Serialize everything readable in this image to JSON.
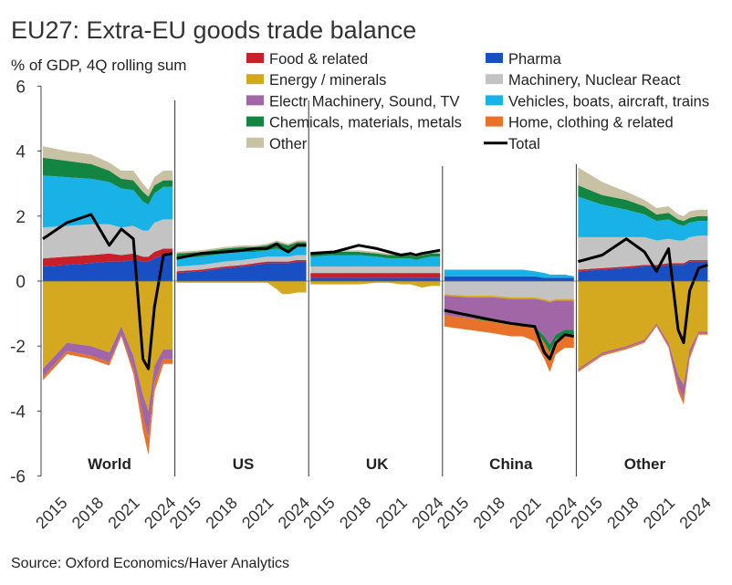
{
  "chart_data": {
    "type": "area",
    "title": "EU27: Extra-EU goods trade balance",
    "subtitle": "% of GDP, 4Q rolling sum",
    "source": "Source: Oxford Economics/Haver Analytics",
    "ylim": [
      -6,
      6
    ],
    "yticks": [
      "6",
      "4",
      "2",
      "0",
      "-2",
      "-4",
      "-6"
    ],
    "xtick_labels": [
      "2015",
      "2018",
      "2021",
      "2024"
    ],
    "panels": [
      "World",
      "US",
      "UK",
      "China",
      "Other"
    ],
    "legend": [
      {
        "name": "Food & related",
        "color": "#c8202a",
        "kind": "area"
      },
      {
        "name": "Pharma",
        "color": "#1a4fc4",
        "kind": "area"
      },
      {
        "name": "Energy / minerals",
        "color": "#d4a91f",
        "kind": "area"
      },
      {
        "name": "Machinery, Nuclear React",
        "color": "#c3c3c3",
        "kind": "area"
      },
      {
        "name": "Electr Machinery, Sound, TV",
        "color": "#a166a6",
        "kind": "area"
      },
      {
        "name": "Vehicles, boats, aircraft, trains",
        "color": "#19b2e6",
        "kind": "area"
      },
      {
        "name": "Chemicals, materials, metals",
        "color": "#138542",
        "kind": "area"
      },
      {
        "name": "Home, clothing & related",
        "color": "#e8722a",
        "kind": "area"
      },
      {
        "name": "Other",
        "color": "#c9c1a3",
        "kind": "area"
      },
      {
        "name": "Total",
        "color": "#000000",
        "kind": "line"
      }
    ],
    "x_time": [
      2014.0,
      2016.0,
      2018.0,
      2019.5,
      2020.5,
      2021.5,
      2022.3,
      2022.75,
      2023.25,
      2024.0,
      2024.75
    ],
    "series_order": [
      "Pharma",
      "Food & related",
      "Machinery, Nuclear React",
      "Vehicles, boats, aircraft, trains",
      "Chemicals, materials, metals",
      "Other",
      "Energy / minerals",
      "Electr Machinery, Sound, TV",
      "Home, clothing & related"
    ],
    "panel_data": {
      "World": {
        "Pharma": [
          0.45,
          0.5,
          0.55,
          0.6,
          0.6,
          0.65,
          0.6,
          0.6,
          0.7,
          0.8,
          0.8
        ],
        "Food & related": [
          0.25,
          0.25,
          0.25,
          0.25,
          0.2,
          0.2,
          0.15,
          0.15,
          0.2,
          0.2,
          0.2
        ],
        "Machinery, Nuclear React": [
          0.95,
          0.95,
          0.95,
          0.9,
          0.85,
          0.85,
          0.8,
          0.8,
          0.9,
          0.9,
          0.9
        ],
        "Vehicles, boats, aircraft, trains": [
          1.6,
          1.5,
          1.4,
          1.3,
          1.2,
          1.1,
          0.9,
          0.8,
          0.9,
          1.0,
          1.0
        ],
        "Chemicals, materials, metals": [
          0.55,
          0.5,
          0.45,
          0.35,
          0.3,
          0.3,
          0.3,
          0.25,
          0.25,
          0.2,
          0.2
        ],
        "Other": [
          0.35,
          0.3,
          0.3,
          0.25,
          0.25,
          0.3,
          0.25,
          0.2,
          0.25,
          0.3,
          0.3
        ],
        "Energy / minerals": [
          -2.7,
          -1.9,
          -2.0,
          -2.2,
          -1.4,
          -2.3,
          -3.5,
          -4.0,
          -2.6,
          -2.1,
          -2.1
        ],
        "Electr Machinery, Sound, TV": [
          -0.25,
          -0.25,
          -0.3,
          -0.3,
          -0.25,
          -0.4,
          -0.7,
          -0.8,
          -0.5,
          -0.3,
          -0.3
        ],
        "Home, clothing & related": [
          -0.1,
          -0.1,
          -0.1,
          -0.1,
          -0.05,
          -0.15,
          -0.4,
          -0.55,
          -0.3,
          -0.15,
          -0.15
        ],
        "Total": [
          1.3,
          1.8,
          2.05,
          1.1,
          1.6,
          1.3,
          -2.4,
          -2.7,
          -0.8,
          0.8,
          0.85
        ]
      },
      "US": {
        "Pharma": [
          0.25,
          0.3,
          0.4,
          0.45,
          0.5,
          0.55,
          0.55,
          0.55,
          0.55,
          0.6,
          0.6
        ],
        "Food & related": [
          0.05,
          0.05,
          0.05,
          0.05,
          0.05,
          0.05,
          0.05,
          0.05,
          0.05,
          0.05,
          0.05
        ],
        "Machinery, Nuclear React": [
          0.15,
          0.15,
          0.15,
          0.15,
          0.15,
          0.15,
          0.15,
          0.15,
          0.15,
          0.15,
          0.15
        ],
        "Vehicles, boats, aircraft, trains": [
          0.25,
          0.25,
          0.25,
          0.25,
          0.2,
          0.2,
          0.25,
          0.2,
          0.2,
          0.25,
          0.25
        ],
        "Chemicals, materials, metals": [
          0.15,
          0.15,
          0.15,
          0.15,
          0.15,
          0.15,
          0.2,
          0.2,
          0.15,
          0.15,
          0.15
        ],
        "Other": [
          0.05,
          0.05,
          0.05,
          0.05,
          0.05,
          0.05,
          0.05,
          0.05,
          0.05,
          0.05,
          0.05
        ],
        "Energy / minerals": [
          -0.05,
          -0.05,
          -0.05,
          -0.05,
          -0.05,
          -0.05,
          -0.25,
          -0.4,
          -0.4,
          -0.35,
          -0.35
        ],
        "Electr Machinery, Sound, TV": [
          0,
          0,
          0,
          0,
          0,
          0,
          0,
          0,
          0,
          0,
          0
        ],
        "Home, clothing & related": [
          0,
          0,
          0,
          0,
          0,
          0,
          0,
          0,
          0,
          0,
          0
        ],
        "Total": [
          0.7,
          0.85,
          0.9,
          0.95,
          1.0,
          1.0,
          1.15,
          1.0,
          0.9,
          1.1,
          1.1
        ]
      },
      "UK": {
        "Pharma": [
          0.1,
          0.1,
          0.1,
          0.1,
          0.1,
          0.1,
          0.1,
          0.1,
          0.1,
          0.1,
          0.1
        ],
        "Food & related": [
          0.15,
          0.15,
          0.15,
          0.15,
          0.15,
          0.15,
          0.15,
          0.15,
          0.15,
          0.15,
          0.15
        ],
        "Machinery, Nuclear React": [
          0.2,
          0.2,
          0.2,
          0.2,
          0.2,
          0.2,
          0.2,
          0.2,
          0.2,
          0.2,
          0.2
        ],
        "Vehicles, boats, aircraft, trains": [
          0.3,
          0.35,
          0.35,
          0.3,
          0.25,
          0.25,
          0.25,
          0.2,
          0.25,
          0.3,
          0.3
        ],
        "Chemicals, materials, metals": [
          0.1,
          0.1,
          0.1,
          0.1,
          0.1,
          0.1,
          0.1,
          0.1,
          0.1,
          0.1,
          0.1
        ],
        "Other": [
          0.05,
          0.05,
          0.05,
          0.05,
          0.05,
          0.05,
          0.05,
          0.05,
          0.05,
          0.05,
          0.05
        ],
        "Energy / minerals": [
          -0.1,
          -0.1,
          -0.1,
          -0.05,
          -0.05,
          -0.1,
          -0.1,
          -0.15,
          -0.2,
          -0.15,
          -0.15
        ],
        "Electr Machinery, Sound, TV": [
          0,
          0,
          0,
          0,
          0,
          0,
          0,
          0,
          0,
          0,
          0
        ],
        "Home, clothing & related": [
          0,
          0,
          0,
          0,
          0,
          0,
          0,
          0,
          0,
          0,
          0
        ],
        "Total": [
          0.85,
          0.9,
          1.1,
          1.0,
          0.9,
          0.8,
          0.85,
          0.8,
          0.85,
          0.9,
          0.95
        ]
      },
      "China": {
        "Pharma": [
          0.15,
          0.15,
          0.15,
          0.15,
          0.15,
          0.15,
          0.1,
          0.1,
          0.1,
          0.1,
          0.1
        ],
        "Food & related": [
          0,
          0,
          0,
          0,
          0,
          0,
          0,
          0,
          0,
          0,
          0
        ],
        "Machinery, Nuclear React": [
          0,
          0,
          0,
          0,
          0,
          0,
          0,
          0,
          0,
          0,
          0
        ],
        "Vehicles, boats, aircraft, trains": [
          0.2,
          0.2,
          0.2,
          0.2,
          0.2,
          0.15,
          0.15,
          0.1,
          0.1,
          0.1,
          0.05
        ],
        "Chemicals, materials, metals": [
          0,
          0,
          0,
          0,
          0,
          0,
          0,
          0,
          0,
          0,
          0
        ],
        "Other": [
          0,
          0,
          0,
          0,
          0,
          0,
          0,
          0,
          0,
          0,
          0
        ],
        "Energy / minerals": [
          -0.05,
          -0.05,
          -0.05,
          -0.05,
          -0.05,
          -0.05,
          -0.05,
          -0.05,
          -0.05,
          -0.05,
          -0.05
        ],
        "Electr Machinery, Sound, TV": [
          -0.6,
          -0.65,
          -0.7,
          -0.75,
          -0.75,
          -0.85,
          -1.1,
          -1.3,
          -1.05,
          -0.9,
          -0.9
        ],
        "Home, clothing & related": [
          -0.35,
          -0.35,
          -0.35,
          -0.35,
          -0.35,
          -0.4,
          -0.5,
          -0.6,
          -0.45,
          -0.4,
          -0.4
        ],
        "Machinery, Nuclear React (negative)": [
          -0.4,
          -0.45,
          -0.45,
          -0.5,
          -0.5,
          -0.5,
          -0.55,
          -0.6,
          -0.55,
          -0.55,
          -0.55
        ],
        "Chemicals, materials, metals (negative)": [
          0,
          0,
          -0.05,
          -0.05,
          -0.05,
          -0.05,
          -0.2,
          -0.25,
          -0.15,
          -0.15,
          -0.15
        ],
        "Total": [
          -0.9,
          -1.05,
          -1.2,
          -1.3,
          -1.35,
          -1.4,
          -2.2,
          -2.4,
          -1.9,
          -1.65,
          -1.7
        ]
      },
      "Other": {
        "Pharma": [
          0.3,
          0.35,
          0.4,
          0.45,
          0.45,
          0.5,
          0.5,
          0.5,
          0.6,
          0.6,
          0.6
        ],
        "Food & related": [
          0.05,
          0.05,
          0.05,
          0.05,
          0.05,
          0.05,
          0.05,
          0.05,
          0.05,
          0.05,
          0.05
        ],
        "Machinery, Nuclear React": [
          1.0,
          0.95,
          0.9,
          0.85,
          0.75,
          0.75,
          0.7,
          0.7,
          0.7,
          0.75,
          0.75
        ],
        "Vehicles, boats, aircraft, trains": [
          1.25,
          1.0,
          0.85,
          0.7,
          0.6,
          0.6,
          0.5,
          0.45,
          0.45,
          0.45,
          0.45
        ],
        "Chemicals, materials, metals": [
          0.35,
          0.3,
          0.3,
          0.25,
          0.2,
          0.2,
          0.15,
          0.15,
          0.15,
          0.15,
          0.15
        ],
        "Other": [
          0.55,
          0.4,
          0.25,
          0.2,
          0.2,
          0.2,
          0.15,
          0.15,
          0.2,
          0.2,
          0.2
        ],
        "Energy / minerals": [
          -2.7,
          -2.2,
          -2.0,
          -1.8,
          -1.3,
          -1.9,
          -2.9,
          -3.2,
          -2.1,
          -1.55,
          -1.55
        ],
        "Electr Machinery, Sound, TV": [
          -0.05,
          -0.05,
          -0.05,
          -0.05,
          -0.05,
          -0.1,
          -0.35,
          -0.4,
          -0.2,
          -0.05,
          -0.05
        ],
        "Home, clothing & related": [
          -0.05,
          -0.05,
          -0.05,
          -0.05,
          -0.05,
          -0.05,
          -0.15,
          -0.2,
          -0.1,
          -0.05,
          -0.05
        ],
        "Total": [
          0.6,
          0.8,
          1.3,
          0.9,
          0.3,
          1.0,
          -1.5,
          -1.9,
          -0.3,
          0.4,
          0.5
        ]
      }
    }
  }
}
